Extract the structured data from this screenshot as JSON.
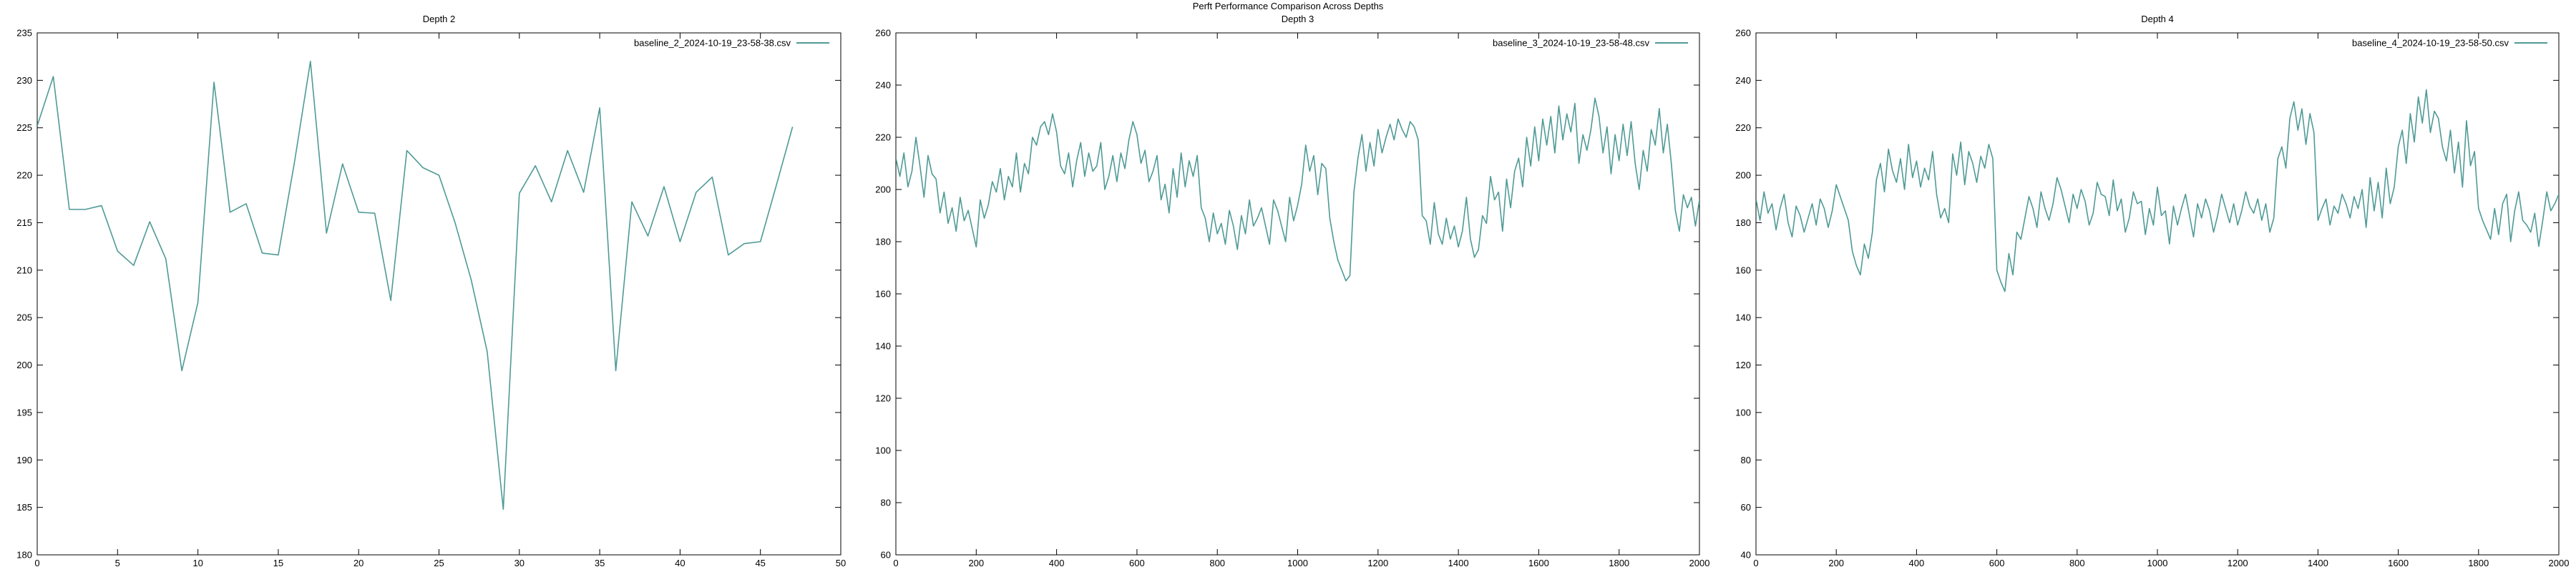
{
  "title": "Perft Performance Comparison Across Depths",
  "colors": {
    "series": "#4f9a96",
    "axis": "#000000",
    "background": "#ffffff"
  },
  "chart_data": [
    {
      "type": "line",
      "title": "Depth 2",
      "xlabel": "",
      "ylabel": "",
      "xlim": [
        0,
        50
      ],
      "ylim": [
        180,
        235
      ],
      "x_ticks": [
        0,
        5,
        10,
        15,
        20,
        25,
        30,
        35,
        40,
        45,
        50
      ],
      "y_ticks": [
        180,
        185,
        190,
        195,
        200,
        205,
        210,
        215,
        220,
        225,
        230,
        235
      ],
      "grid": false,
      "legend_position": "top-right",
      "series": [
        {
          "name": "baseline_2_2024-10-19_23-58-38.csv",
          "x": [
            0,
            1,
            2,
            3,
            4,
            5,
            6,
            7,
            8,
            9,
            10,
            11,
            12,
            13,
            14,
            15,
            16,
            17,
            18,
            19,
            20,
            21,
            22,
            23,
            24,
            25,
            26,
            27,
            28,
            29,
            30,
            31,
            32,
            33,
            34,
            35,
            36,
            37,
            38,
            39,
            40,
            41,
            42,
            43,
            44,
            45,
            46,
            47
          ],
          "values": [
            225.2,
            230.4,
            216.4,
            216.4,
            216.8,
            212.0,
            210.5,
            215.1,
            211.2,
            199.4,
            206.6,
            229.8,
            216.1,
            217.0,
            211.8,
            211.6,
            221.3,
            232.0,
            213.9,
            221.2,
            216.1,
            216.0,
            206.8,
            222.6,
            220.8,
            220.0,
            215.0,
            209.0,
            201.4,
            184.8,
            218.1,
            221.0,
            217.2,
            222.6,
            218.2,
            227.1,
            199.4,
            217.2,
            213.6,
            218.8,
            213.0,
            218.2,
            219.8,
            211.6,
            212.8,
            213.0,
            219.0,
            225.1
          ]
        }
      ]
    },
    {
      "type": "line",
      "title": "Depth 3",
      "xlabel": "",
      "ylabel": "",
      "xlim": [
        0,
        2000
      ],
      "ylim": [
        60,
        260
      ],
      "x_ticks": [
        0,
        200,
        400,
        600,
        800,
        1000,
        1200,
        1400,
        1600,
        1800,
        2000
      ],
      "y_ticks": [
        60,
        80,
        100,
        120,
        140,
        160,
        180,
        200,
        220,
        240,
        260
      ],
      "grid": false,
      "legend_position": "top-right",
      "series": [
        {
          "name": "baseline_3_2024-10-19_23-58-48.csv",
          "x_start": 0,
          "x_step": 10,
          "values": [
            212,
            205,
            214,
            201,
            207,
            220,
            209,
            197,
            213,
            206,
            204,
            191,
            199,
            187,
            193,
            184,
            197,
            188,
            192,
            185,
            178,
            196,
            189,
            194,
            203,
            199,
            208,
            196,
            205,
            201,
            214,
            199,
            210,
            206,
            220,
            217,
            224,
            226,
            221,
            229,
            222,
            209,
            206,
            214,
            201,
            211,
            218,
            205,
            214,
            207,
            209,
            218,
            200,
            205,
            213,
            203,
            214,
            208,
            219,
            226,
            221,
            210,
            215,
            203,
            207,
            213,
            196,
            202,
            191,
            208,
            197,
            214,
            201,
            211,
            205,
            213,
            193,
            189,
            180,
            191,
            183,
            187,
            179,
            192,
            186,
            177,
            190,
            183,
            196,
            186,
            189,
            193,
            186,
            179,
            196,
            192,
            186,
            180,
            197,
            188,
            194,
            202,
            217,
            207,
            213,
            198,
            210,
            208,
            189,
            180,
            173,
            169,
            165,
            167,
            199,
            212,
            221,
            207,
            218,
            209,
            223,
            214,
            220,
            225,
            219,
            227,
            223,
            220,
            226,
            224,
            219,
            190,
            188,
            179,
            195,
            183,
            179,
            189,
            181,
            186,
            178,
            184,
            197,
            181,
            174,
            177,
            190,
            187,
            205,
            196,
            199,
            184,
            204,
            193,
            207,
            212,
            201,
            220,
            209,
            224,
            211,
            227,
            217,
            228,
            214,
            232,
            219,
            229,
            222,
            233,
            210,
            221,
            215,
            223,
            235,
            228,
            214,
            224,
            206,
            221,
            211,
            225,
            213,
            226,
            210,
            200,
            215,
            207,
            223,
            217,
            231,
            214,
            225,
            210,
            192,
            184,
            198,
            193,
            197,
            186,
            196,
            182,
            200,
            190,
            193,
            187,
            199,
            195,
            197,
            194
          ]
        }
      ]
    },
    {
      "type": "line",
      "title": "Depth 4",
      "xlabel": "",
      "ylabel": "",
      "xlim": [
        0,
        2000
      ],
      "ylim": [
        40,
        260
      ],
      "x_ticks": [
        0,
        200,
        400,
        600,
        800,
        1000,
        1200,
        1400,
        1600,
        1800,
        2000
      ],
      "y_ticks": [
        40,
        60,
        80,
        100,
        120,
        140,
        160,
        180,
        200,
        220,
        240,
        260
      ],
      "grid": false,
      "legend_position": "top-right",
      "series": [
        {
          "name": "baseline_4_2024-10-19_23-58-50.csv",
          "x_start": 0,
          "x_step": 10,
          "values": [
            190,
            181,
            193,
            184,
            188,
            177,
            186,
            192,
            180,
            174,
            187,
            183,
            176,
            182,
            188,
            179,
            190,
            186,
            178,
            185,
            196,
            191,
            186,
            181,
            168,
            162,
            158,
            171,
            165,
            176,
            198,
            205,
            193,
            211,
            202,
            197,
            207,
            194,
            213,
            199,
            206,
            195,
            203,
            198,
            210,
            192,
            182,
            186,
            180,
            209,
            200,
            214,
            196,
            210,
            205,
            197,
            208,
            203,
            213,
            207,
            160,
            155,
            151,
            167,
            158,
            176,
            173,
            182,
            191,
            186,
            178,
            193,
            186,
            181,
            188,
            199,
            194,
            187,
            180,
            192,
            186,
            194,
            189,
            179,
            184,
            197,
            192,
            191,
            183,
            198,
            185,
            190,
            176,
            182,
            193,
            188,
            189,
            175,
            186,
            179,
            195,
            183,
            185,
            171,
            187,
            179,
            186,
            192,
            183,
            174,
            188,
            182,
            190,
            185,
            176,
            183,
            192,
            186,
            180,
            188,
            179,
            185,
            193,
            187,
            184,
            190,
            181,
            188,
            176,
            182,
            207,
            212,
            203,
            224,
            231,
            219,
            228,
            213,
            226,
            218,
            181,
            186,
            190,
            179,
            187,
            184,
            192,
            188,
            182,
            191,
            186,
            194,
            178,
            199,
            185,
            197,
            182,
            203,
            188,
            195,
            212,
            219,
            205,
            226,
            214,
            233,
            222,
            236,
            218,
            227,
            224,
            212,
            206,
            219,
            201,
            214,
            195,
            223,
            204,
            210,
            186,
            181,
            177,
            173,
            186,
            175,
            188,
            192,
            172,
            185,
            193,
            181,
            179,
            176,
            184,
            170,
            181,
            193,
            185,
            188,
            192,
            177,
            174,
            183,
            179,
            186,
            197,
            181,
            203,
            188
          ]
        }
      ]
    }
  ]
}
